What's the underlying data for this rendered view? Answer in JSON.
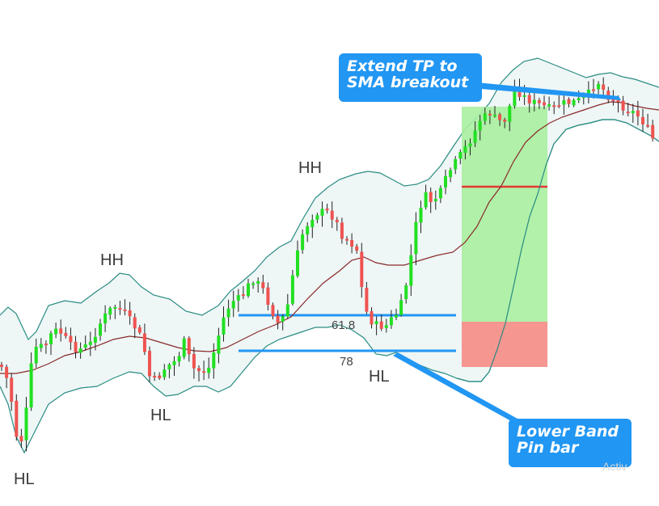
{
  "chart_data": {
    "type": "candlestick",
    "colors": {
      "bull": "#22e022",
      "bear": "#ef5350",
      "band_fill": "#eef6f6",
      "band_line": "#2a8c82",
      "sma_line": "#8b2a2a",
      "level_line": "#2196f3",
      "tp_zone": "#a8f0a0",
      "sl_zone": "#f4908a",
      "entry_line": "#e53935",
      "callout": "#2196f3"
    },
    "swing_labels": [
      "HL",
      "HH",
      "HL",
      "HH",
      "HL"
    ],
    "fib_levels": [
      "61.8",
      "78"
    ],
    "annotations": {
      "tp_callout": "Extend TP to\nSMA breakout",
      "band_callout": "Lower Band\nPin bar"
    },
    "watermark": "Activ"
  }
}
